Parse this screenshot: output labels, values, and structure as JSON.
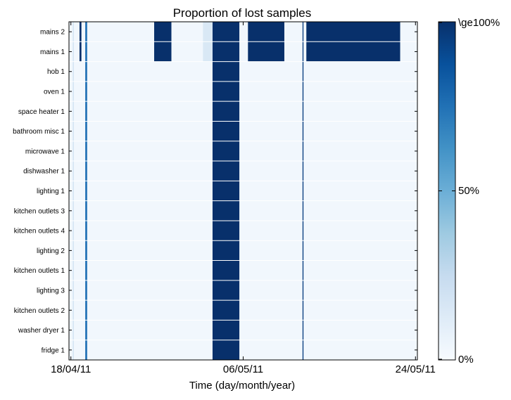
{
  "chart_data": {
    "type": "heatmap",
    "title": "Proportion of lost samples",
    "xlabel": "Time (day/month/year)",
    "ylabel": "",
    "x_tick_labels": [
      "18/04/11",
      "06/05/11",
      "24/05/11"
    ],
    "x_tick_days": [
      0,
      18,
      36
    ],
    "x_range_days": [
      -0.2,
      36.2
    ],
    "rows": [
      "mains 2",
      "mains 1",
      "hob 1",
      "oven 1",
      "space heater 1",
      "bathroom misc 1",
      "microwave 1",
      "dishwasher 1",
      "lighting 1",
      "kitchen outlets 3",
      "kitchen outlets 4",
      "lighting 2",
      "kitchen outlets 1",
      "lighting 3",
      "kitchen outlets 2",
      "washer dryer 1",
      "fridge 1"
    ],
    "colorbar": {
      "colormap": "Blues",
      "min_label": "0%",
      "mid_label": "50%",
      "max_label": "\\ge100%",
      "range": [
        0,
        1
      ]
    },
    "all_channel_gaps": [
      {
        "start_day": 14.8,
        "end_day": 17.6,
        "value": 1.0
      },
      {
        "start_day": 1.5,
        "end_day": 1.7,
        "value": 0.75
      },
      {
        "start_day": 24.2,
        "end_day": 24.3,
        "value": 0.95
      },
      {
        "start_day": 0.2,
        "end_day": 0.3,
        "value": 0.2
      }
    ],
    "mains_only_gaps": [
      {
        "start_day": 0.9,
        "end_day": 1.1,
        "value": 1.0
      },
      {
        "start_day": 8.7,
        "end_day": 10.5,
        "value": 1.0
      },
      {
        "start_day": 13.8,
        "end_day": 14.8,
        "value": 0.15
      },
      {
        "start_day": 18.5,
        "end_day": 22.3,
        "value": 1.0
      },
      {
        "start_day": 24.6,
        "end_day": 34.4,
        "value": 1.0
      }
    ],
    "background_value": 0.03
  }
}
